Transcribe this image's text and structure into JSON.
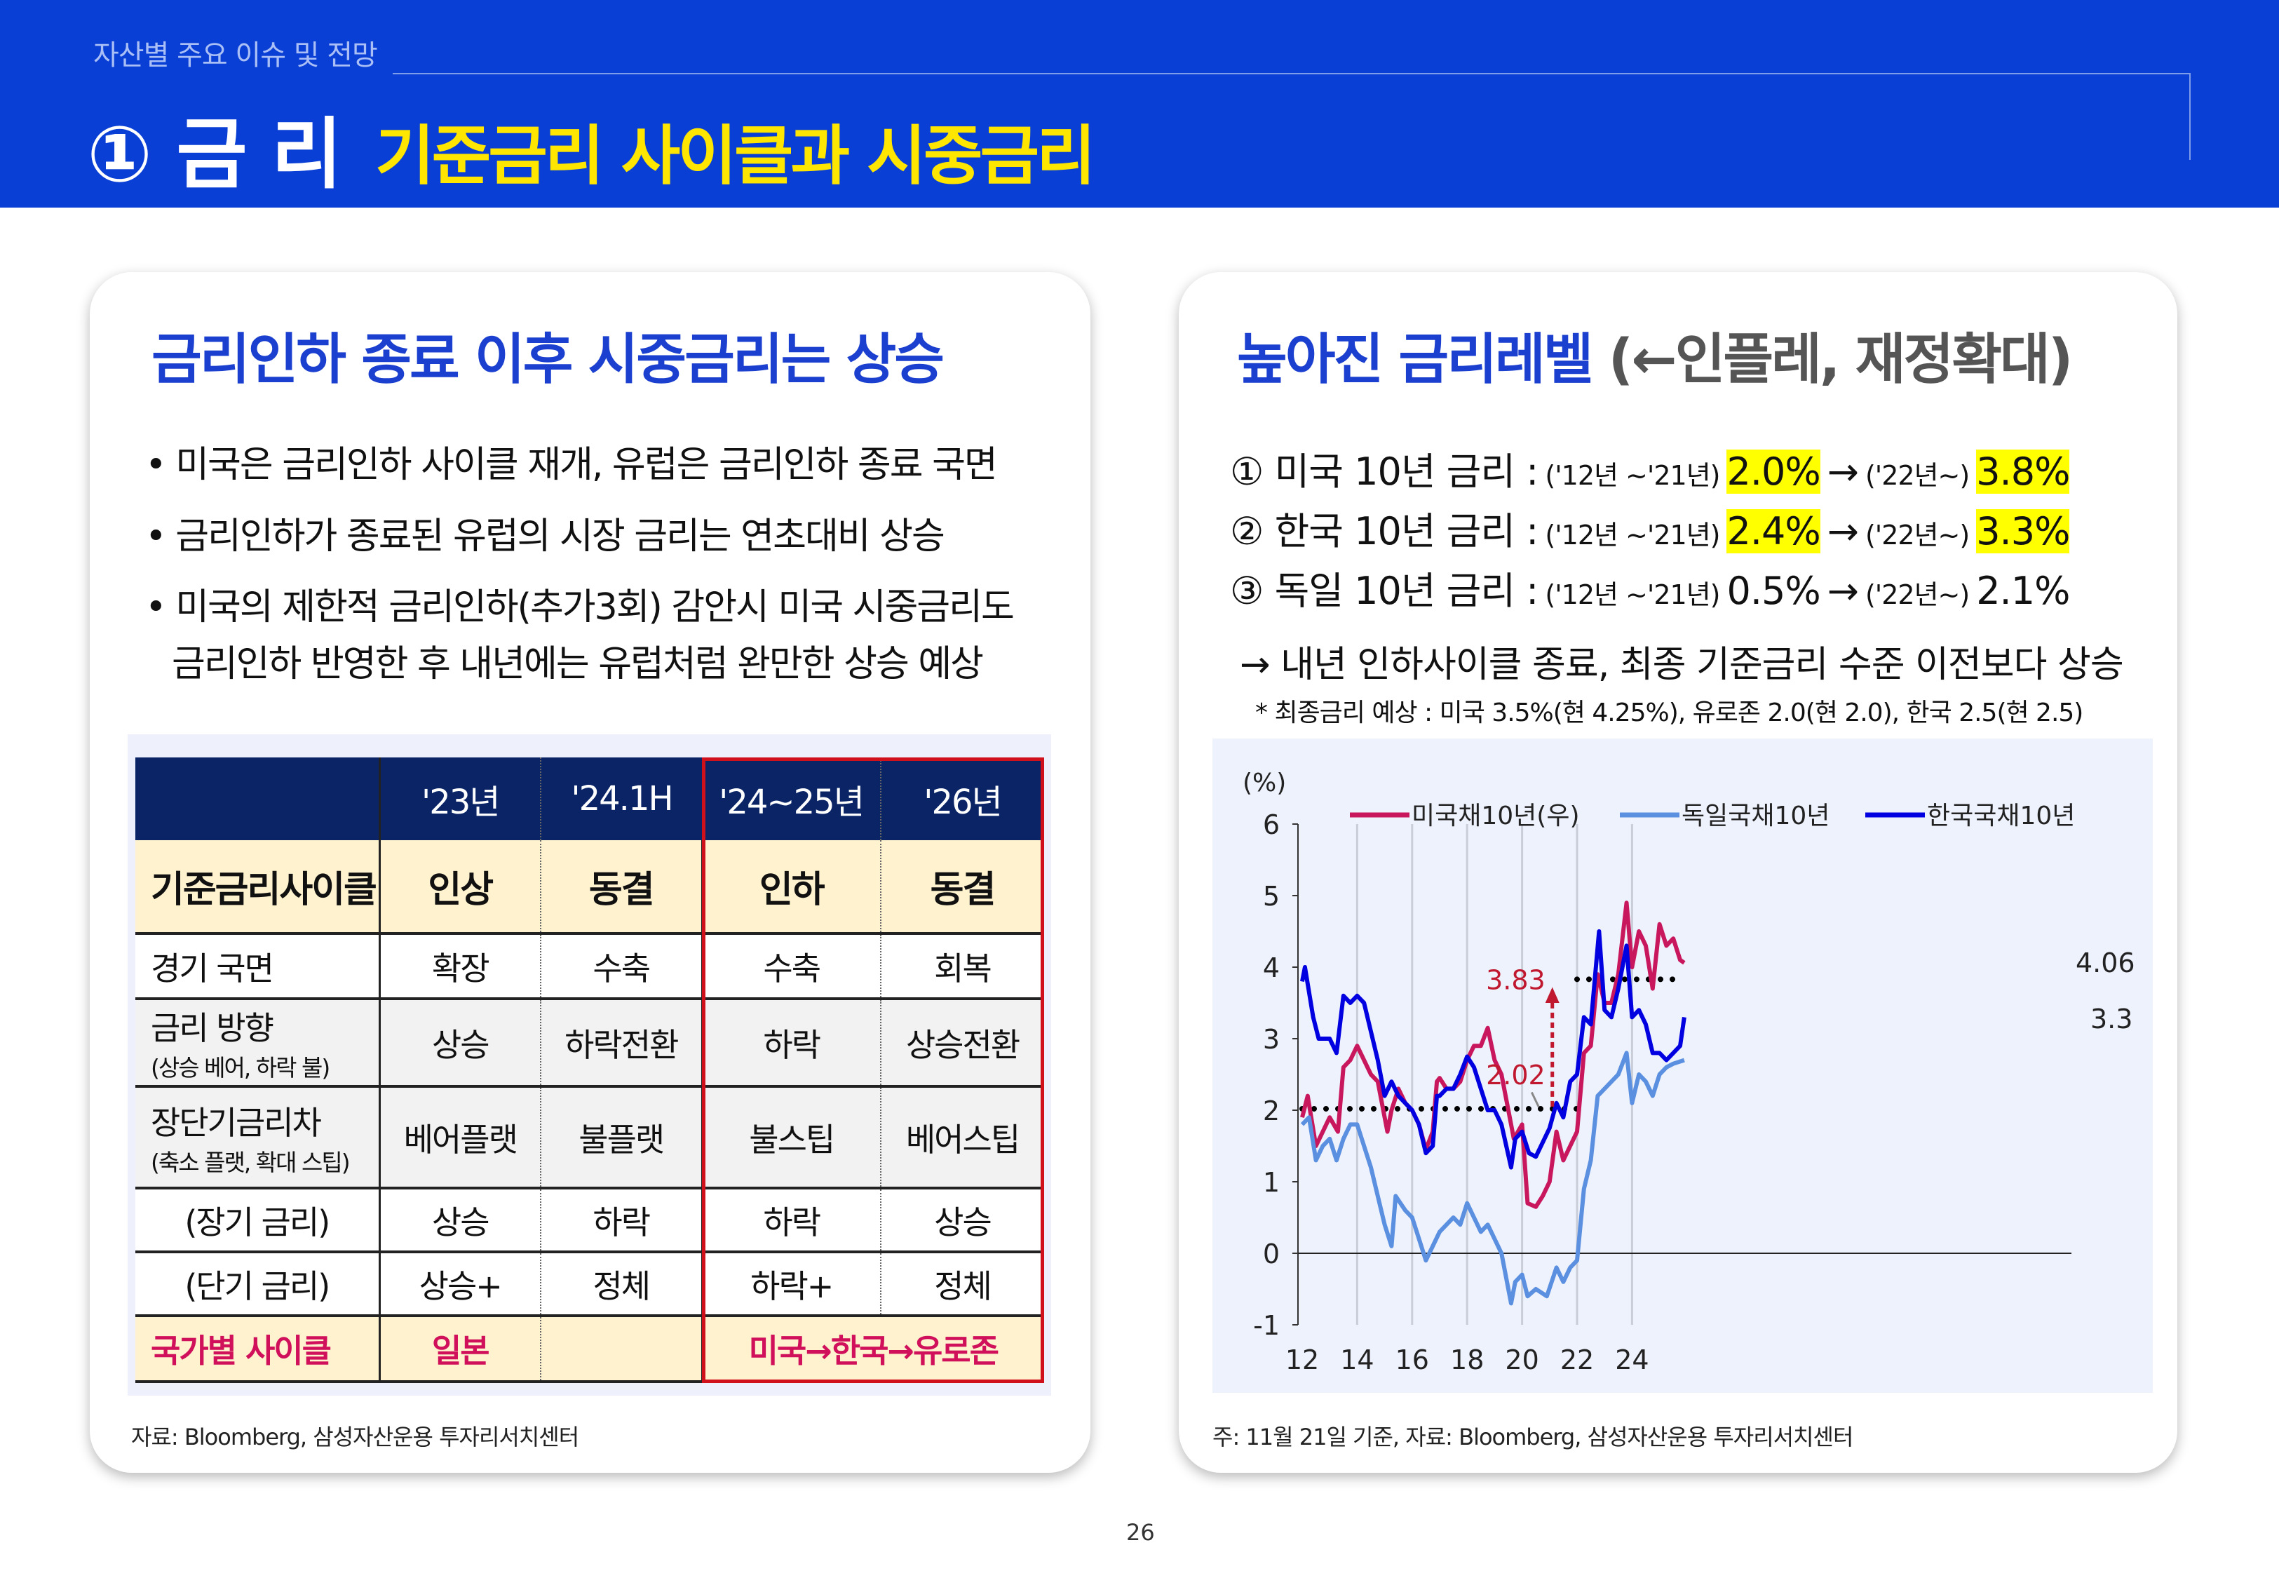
{
  "header": {
    "section": "자산별 주요 이슈 및 전망",
    "title": "① 금 리",
    "subtitle": "기준금리 사이클과 시중금리"
  },
  "left": {
    "heading": "금리인하 종료 이후 시중금리는 상승",
    "bullets": [
      "• 미국은 금리인하 사이클 재개, 유럽은 금리인하 종료 국면",
      "• 금리인하가 종료된 유럽의 시장 금리는 연초대비 상승",
      "• 미국의 제한적 금리인하(추가3회) 감안시 미국 시중금리도",
      "금리인하 반영한 후 내년에는 유럽처럼 완만한 상승 예상"
    ],
    "table": {
      "columns": [
        "",
        "'23년",
        "'24.1H",
        "'24~25년",
        "'26년"
      ],
      "rows": [
        {
          "label": "기준금리사이클",
          "cells": [
            "인상",
            "동결",
            "인하",
            "동결"
          ]
        },
        {
          "label": "경기  국면",
          "cells": [
            "확장",
            "수축",
            "수축",
            "회복"
          ]
        },
        {
          "label": "금리  방향",
          "sub": "(상승 베어, 하락 불)",
          "cells": [
            "상승",
            "하락전환",
            "하락",
            "상승전환"
          ]
        },
        {
          "label": "장단기금리차",
          "sub": "(축소 플랫, 확대 스팁)",
          "cells": [
            "베어플랫",
            "불플랫",
            "불스팁",
            "베어스팁"
          ]
        },
        {
          "label": "(장기 금리)",
          "cells": [
            "상승",
            "하락",
            "하락",
            "상승"
          ]
        },
        {
          "label": "(단기 금리)",
          "cells": [
            "상승+",
            "정체",
            "하락+",
            "정체"
          ]
        },
        {
          "label": "국가별 사이클",
          "cells": [
            "일본",
            "",
            "미국→한국→유로존"
          ]
        }
      ]
    },
    "source": "자료: Bloomberg, 삼성자산운용 투자리서치센터"
  },
  "right": {
    "heading": "높아진 금리레벨",
    "heading_paren": "(←인플레, 재정확대)",
    "lines": [
      {
        "label": "① 미국 10년 금리 :",
        "p1": "('12년 ~'21년)",
        "v1": "2.0%",
        "arrow": "→",
        "p2": "('22년~)",
        "v2": "3.8%",
        "highlight": true
      },
      {
        "label": "② 한국 10년 금리 :",
        "p1": "('12년 ~'21년)",
        "v1": "2.4%",
        "arrow": "→",
        "p2": "('22년~)",
        "v2": "3.3%",
        "highlight": true
      },
      {
        "label": "③ 독일 10년 금리 :",
        "p1": "('12년 ~'21년)",
        "v1": "0.5%",
        "arrow": "→",
        "p2": "('22년~)",
        "v2": "2.1%",
        "highlight": false
      }
    ],
    "conclusion": "→ 내년 인하사이클 종료, 최종 기준금리 수준 이전보다 상승",
    "footnote": "* 최종금리 예상 : 미국 3.5%(현 4.25%), 유로존 2.0(현 2.0), 한국 2.5(현 2.5)",
    "source": "주: 11월 21일 기준, 자료: Bloomberg, 삼성자산운용 투자리서치센터"
  },
  "page_number": "26",
  "colors": {
    "header": "#0a3fd6",
    "accent_yellow": "#ffe600",
    "heading_blue": "#1b3fcf",
    "us": "#c8175d",
    "de": "#5b8fe0",
    "kr": "#0000e0",
    "annot": "#c0182f"
  },
  "chart_data": {
    "type": "line",
    "ylabel": "(%)",
    "ylim": [
      -1,
      6
    ],
    "yticks": [
      -1,
      0,
      1,
      2,
      3,
      4,
      5,
      6
    ],
    "xticks": [
      "12",
      "14",
      "16",
      "18",
      "20",
      "22",
      "24"
    ],
    "xlim": [
      12,
      26
    ],
    "legend": "top",
    "grid": "vertical",
    "series": [
      {
        "name": "미국채10년(우)",
        "color": "#c8175d",
        "end_label": "4.06",
        "points": [
          [
            12,
            1.9
          ],
          [
            12.2,
            2.2
          ],
          [
            12.5,
            1.5
          ],
          [
            12.75,
            1.7
          ],
          [
            13,
            1.9
          ],
          [
            13.3,
            1.7
          ],
          [
            13.5,
            2.6
          ],
          [
            13.75,
            2.7
          ],
          [
            14,
            2.9
          ],
          [
            14.25,
            2.7
          ],
          [
            14.5,
            2.5
          ],
          [
            14.75,
            2.4
          ],
          [
            15,
            1.9
          ],
          [
            15.1,
            1.7
          ],
          [
            15.25,
            2.0
          ],
          [
            15.5,
            2.3
          ],
          [
            15.75,
            2.1
          ],
          [
            16,
            2.0
          ],
          [
            16.25,
            1.8
          ],
          [
            16.5,
            1.45
          ],
          [
            16.75,
            1.7
          ],
          [
            16.9,
            2.4
          ],
          [
            17,
            2.45
          ],
          [
            17.25,
            2.3
          ],
          [
            17.5,
            2.3
          ],
          [
            17.75,
            2.4
          ],
          [
            18,
            2.7
          ],
          [
            18.25,
            2.9
          ],
          [
            18.5,
            2.9
          ],
          [
            18.75,
            3.15
          ],
          [
            19,
            2.7
          ],
          [
            19.25,
            2.5
          ],
          [
            19.5,
            2.0
          ],
          [
            19.7,
            1.6
          ],
          [
            20,
            1.8
          ],
          [
            20.2,
            0.7
          ],
          [
            20.5,
            0.65
          ],
          [
            20.75,
            0.8
          ],
          [
            21,
            1.0
          ],
          [
            21.25,
            1.7
          ],
          [
            21.5,
            1.3
          ],
          [
            21.75,
            1.5
          ],
          [
            22,
            1.7
          ],
          [
            22.25,
            2.8
          ],
          [
            22.5,
            2.9
          ],
          [
            22.75,
            3.9
          ],
          [
            23,
            3.5
          ],
          [
            23.25,
            3.5
          ],
          [
            23.5,
            3.9
          ],
          [
            23.8,
            4.9
          ],
          [
            24,
            4.0
          ],
          [
            24.25,
            4.5
          ],
          [
            24.5,
            4.3
          ],
          [
            24.75,
            3.7
          ],
          [
            25,
            4.6
          ],
          [
            25.25,
            4.3
          ],
          [
            25.5,
            4.4
          ],
          [
            25.75,
            4.1
          ],
          [
            25.9,
            4.06
          ]
        ]
      },
      {
        "name": "독일국채10년",
        "color": "#5b8fe0",
        "end_label": "",
        "points": [
          [
            12,
            1.8
          ],
          [
            12.25,
            1.9
          ],
          [
            12.5,
            1.3
          ],
          [
            12.75,
            1.5
          ],
          [
            13,
            1.6
          ],
          [
            13.25,
            1.3
          ],
          [
            13.5,
            1.6
          ],
          [
            13.75,
            1.8
          ],
          [
            14,
            1.8
          ],
          [
            14.25,
            1.5
          ],
          [
            14.5,
            1.2
          ],
          [
            14.75,
            0.8
          ],
          [
            15,
            0.4
          ],
          [
            15.25,
            0.1
          ],
          [
            15.4,
            0.8
          ],
          [
            15.75,
            0.6
          ],
          [
            16,
            0.5
          ],
          [
            16.25,
            0.2
          ],
          [
            16.5,
            -0.1
          ],
          [
            16.75,
            0.1
          ],
          [
            17,
            0.3
          ],
          [
            17.25,
            0.4
          ],
          [
            17.5,
            0.5
          ],
          [
            17.75,
            0.4
          ],
          [
            18,
            0.7
          ],
          [
            18.25,
            0.5
          ],
          [
            18.5,
            0.3
          ],
          [
            18.75,
            0.4
          ],
          [
            19,
            0.2
          ],
          [
            19.25,
            0.0
          ],
          [
            19.6,
            -0.7
          ],
          [
            19.75,
            -0.4
          ],
          [
            20,
            -0.3
          ],
          [
            20.2,
            -0.6
          ],
          [
            20.5,
            -0.5
          ],
          [
            20.9,
            -0.6
          ],
          [
            21.25,
            -0.2
          ],
          [
            21.5,
            -0.4
          ],
          [
            21.75,
            -0.2
          ],
          [
            22,
            -0.1
          ],
          [
            22.25,
            0.9
          ],
          [
            22.5,
            1.3
          ],
          [
            22.75,
            2.2
          ],
          [
            23,
            2.3
          ],
          [
            23.25,
            2.4
          ],
          [
            23.5,
            2.5
          ],
          [
            23.8,
            2.8
          ],
          [
            24,
            2.1
          ],
          [
            24.25,
            2.5
          ],
          [
            24.5,
            2.4
          ],
          [
            24.75,
            2.2
          ],
          [
            25,
            2.5
          ],
          [
            25.25,
            2.6
          ],
          [
            25.5,
            2.65
          ],
          [
            25.9,
            2.7
          ]
        ]
      },
      {
        "name": "한국국채10년",
        "color": "#0000e0",
        "end_label": "3.3",
        "points": [
          [
            12,
            3.8
          ],
          [
            12.1,
            4.0
          ],
          [
            12.4,
            3.3
          ],
          [
            12.6,
            3.0
          ],
          [
            13,
            3.0
          ],
          [
            13.25,
            2.8
          ],
          [
            13.5,
            3.6
          ],
          [
            13.75,
            3.5
          ],
          [
            14,
            3.6
          ],
          [
            14.25,
            3.5
          ],
          [
            14.5,
            3.1
          ],
          [
            14.75,
            2.7
          ],
          [
            15,
            2.2
          ],
          [
            15.25,
            2.4
          ],
          [
            15.5,
            2.2
          ],
          [
            15.75,
            2.1
          ],
          [
            16,
            2.0
          ],
          [
            16.25,
            1.8
          ],
          [
            16.5,
            1.4
          ],
          [
            16.75,
            1.5
          ],
          [
            16.9,
            2.2
          ],
          [
            17,
            2.2
          ],
          [
            17.25,
            2.3
          ],
          [
            17.5,
            2.3
          ],
          [
            17.75,
            2.5
          ],
          [
            18,
            2.75
          ],
          [
            18.25,
            2.6
          ],
          [
            18.5,
            2.3
          ],
          [
            18.75,
            2.0
          ],
          [
            19,
            2.0
          ],
          [
            19.25,
            1.8
          ],
          [
            19.6,
            1.2
          ],
          [
            19.75,
            1.6
          ],
          [
            20,
            1.7
          ],
          [
            20.25,
            1.4
          ],
          [
            20.5,
            1.35
          ],
          [
            20.75,
            1.55
          ],
          [
            21,
            1.75
          ],
          [
            21.25,
            2.1
          ],
          [
            21.5,
            1.9
          ],
          [
            21.75,
            2.4
          ],
          [
            22,
            2.5
          ],
          [
            22.25,
            3.3
          ],
          [
            22.5,
            3.2
          ],
          [
            22.8,
            4.5
          ],
          [
            23,
            3.4
          ],
          [
            23.25,
            3.3
          ],
          [
            23.5,
            3.7
          ],
          [
            23.8,
            4.3
          ],
          [
            24,
            3.3
          ],
          [
            24.25,
            3.4
          ],
          [
            24.5,
            3.2
          ],
          [
            24.75,
            2.8
          ],
          [
            25,
            2.8
          ],
          [
            25.25,
            2.7
          ],
          [
            25.5,
            2.8
          ],
          [
            25.75,
            2.9
          ],
          [
            25.9,
            3.3
          ]
        ]
      }
    ],
    "annotations": [
      {
        "label": "2.02",
        "y": 2.02,
        "from": 12,
        "to": 22
      },
      {
        "label": "3.83",
        "y": 3.83,
        "from": 22,
        "to": 25.9
      }
    ]
  }
}
